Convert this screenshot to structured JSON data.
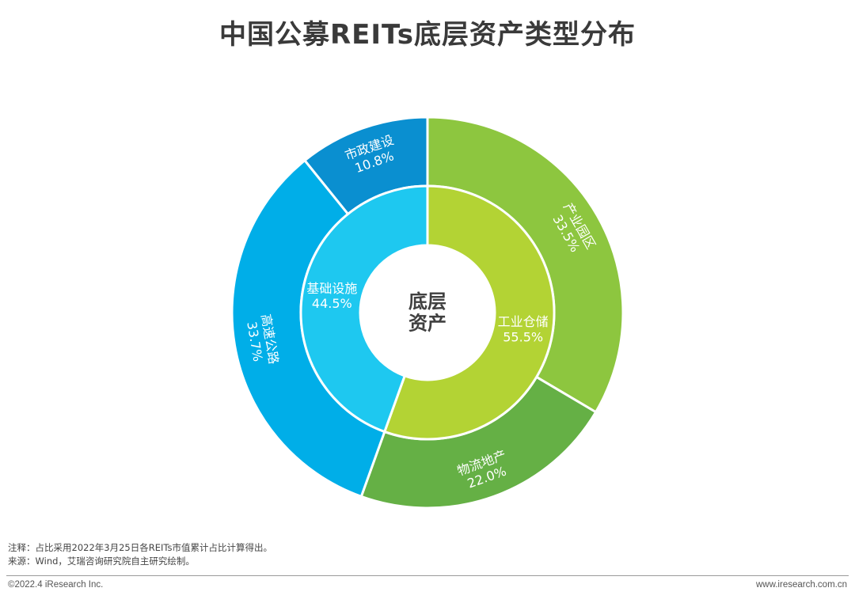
{
  "page": {
    "title": "中国公募REITs底层资产类型分布",
    "note": "注释：占比采用2022年3月25日各REITs市值累计占比计算得出。",
    "source": "来源：Wind，艾瑞咨询研究院自主研究绘制。",
    "copyright": "©2022.4 iResearch Inc.",
    "website": "www.iresearch.com.cn"
  },
  "chart_data": {
    "type": "pie",
    "subtype": "sunburst-donut",
    "center_label": [
      "底层",
      "资产"
    ],
    "inner": [
      {
        "name": "工业仓储",
        "value": 55.5,
        "label": "55.5%",
        "color": "#b3d334"
      },
      {
        "name": "基础设施",
        "value": 44.5,
        "label": "44.5%",
        "color": "#1ec8f0"
      }
    ],
    "outer": [
      {
        "name": "产业园区",
        "value": 33.5,
        "label": "33.5%",
        "parent": "工业仓储",
        "color": "#8dc63f"
      },
      {
        "name": "物流地产",
        "value": 22.0,
        "label": "22.0%",
        "parent": "工业仓储",
        "color": "#65b045"
      },
      {
        "name": "高速公路",
        "value": 33.7,
        "label": "33.7%",
        "parent": "基础设施",
        "color": "#00aee8"
      },
      {
        "name": "市政建设",
        "value": 10.8,
        "label": "10.8%",
        "parent": "基础设施",
        "color": "#0a8fd0"
      }
    ]
  }
}
